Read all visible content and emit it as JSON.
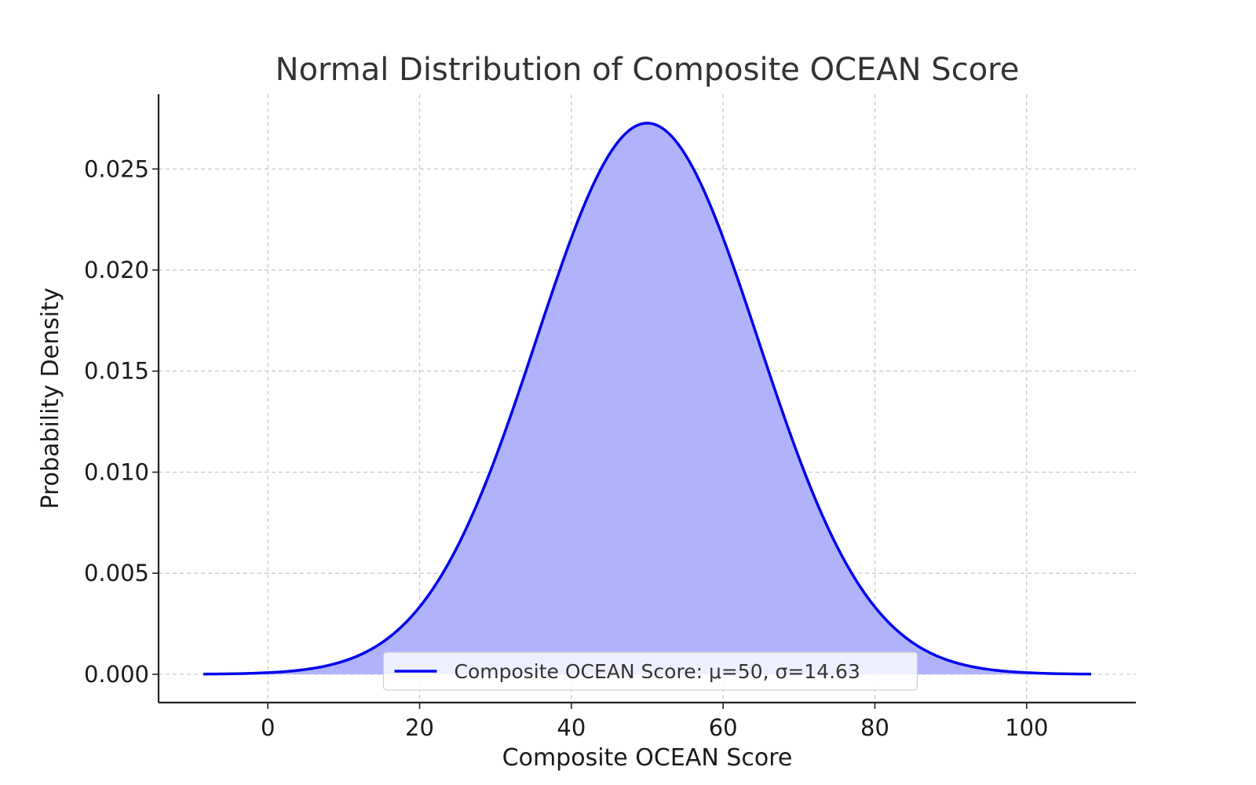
{
  "chart_data": {
    "type": "area",
    "title": "Normal Distribution of Composite OCEAN Score",
    "xlabel": "Composite OCEAN Score",
    "ylabel": "Probability Density",
    "xlim": [
      -14.4,
      114.4
    ],
    "ylim": [
      -0.0014,
      0.0287
    ],
    "x_ticks": [
      0,
      20,
      40,
      60,
      80,
      100
    ],
    "y_ticks": [
      0.0,
      0.005,
      0.01,
      0.015,
      0.02,
      0.025
    ],
    "x_tick_labels": [
      "0",
      "20",
      "40",
      "60",
      "80",
      "100"
    ],
    "y_tick_labels": [
      "0.000",
      "0.005",
      "0.010",
      "0.015",
      "0.020",
      "0.025"
    ],
    "grid": true,
    "legend_position": "bottom-center",
    "series": [
      {
        "name": "Composite OCEAN Score: μ=50, σ=14.63",
        "distribution": "normal",
        "mu": 50,
        "sigma": 14.63,
        "x_range": [
          -8.5,
          108.5
        ],
        "color": "#0000ee",
        "fill_color": "#b0b3fc"
      }
    ]
  }
}
